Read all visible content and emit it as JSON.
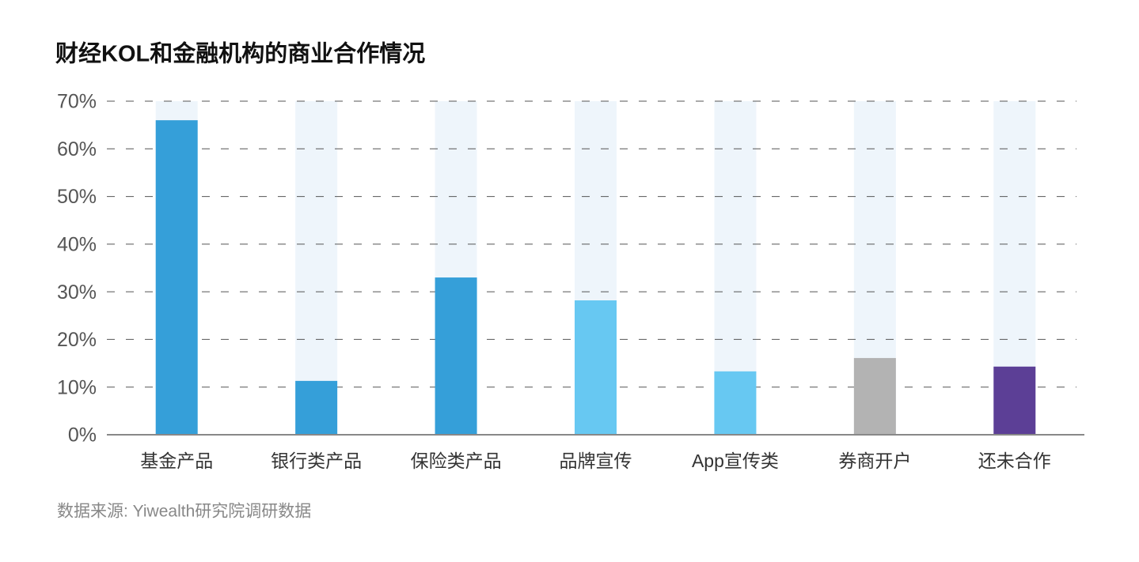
{
  "chart_data": {
    "type": "bar",
    "title": "财经KOL和金融机构的商业合作情况",
    "categories": [
      "基金产品",
      "银行类产品",
      "保险类产品",
      "品牌宣传",
      "App宣传类",
      "券商开户",
      "还未合作"
    ],
    "values": [
      66.0,
      11.3,
      33.0,
      28.2,
      13.3,
      16.1,
      14.3
    ],
    "colors": [
      "#359fd9",
      "#359fd9",
      "#359fd9",
      "#67c8f2",
      "#67c8f2",
      "#b3b3b3",
      "#5c3f96"
    ],
    "track_color": "#eef5fb",
    "ylim": [
      0,
      70
    ],
    "yticks": [
      {
        "value": 0,
        "label": "0%"
      },
      {
        "value": 10,
        "label": "10%"
      },
      {
        "value": 20,
        "label": "20%"
      },
      {
        "value": 30,
        "label": "30%"
      },
      {
        "value": 40,
        "label": "40%"
      },
      {
        "value": 50,
        "label": "50%"
      },
      {
        "value": 60,
        "label": "60%"
      },
      {
        "value": 70,
        "label": "70%"
      }
    ],
    "grid": true,
    "source": "数据来源: Yiwealth研究院调研数据"
  }
}
